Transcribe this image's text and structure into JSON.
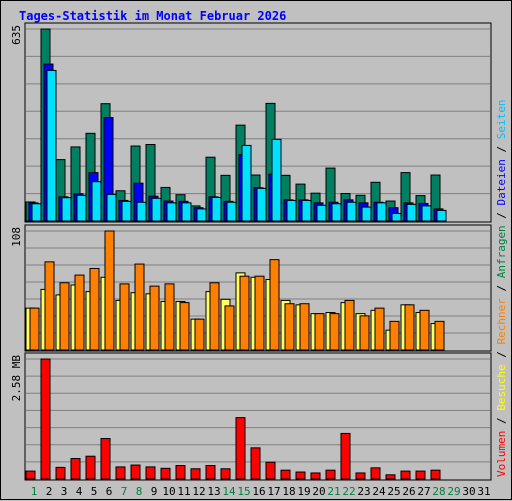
{
  "chart_data": {
    "type": "bar",
    "title": "Tages-Statistik im Monat Februar 2026",
    "title_color": "#0000ff",
    "background": "#c0c0c0",
    "plot_background": "#c0c0c0",
    "grid": true,
    "categories": [
      "1",
      "2",
      "3",
      "4",
      "5",
      "6",
      "7",
      "8",
      "9",
      "10",
      "11",
      "12",
      "13",
      "14",
      "15",
      "16",
      "17",
      "18",
      "19",
      "20",
      "21",
      "22",
      "23",
      "24",
      "25",
      "26",
      "27",
      "28",
      "29",
      "30",
      "31"
    ],
    "category_colors": [
      "#008040",
      "#000000",
      "#000000",
      "#000000",
      "#000000",
      "#000000",
      "#008040",
      "#008040",
      "#000000",
      "#000000",
      "#000000",
      "#000000",
      "#000000",
      "#008040",
      "#008040",
      "#000000",
      "#000000",
      "#000000",
      "#000000",
      "#000000",
      "#008040",
      "#008040",
      "#000000",
      "#000000",
      "#000000",
      "#000000",
      "#000000",
      "#008040",
      "#008040",
      "#000000",
      "#000000"
    ],
    "panels": [
      {
        "name": "requests",
        "max_label": "635",
        "ymax": 635,
        "right_labels": [
          {
            "text": "Anfragen",
            "color": "#008040"
          },
          {
            "text": " / ",
            "color": "#000000"
          },
          {
            "text": "Dateien",
            "color": "#0000ff"
          },
          {
            "text": " / ",
            "color": "#000000"
          },
          {
            "text": "Seiten",
            "color": "#00c0ff"
          }
        ],
        "series": [
          {
            "name": "Anfragen",
            "color": "#008060",
            "values": [
              63,
              635,
              203,
              245,
              290,
              388,
              100,
              248,
              253,
              111,
              87,
              50,
              211,
              151,
              317,
              152,
              389,
              151,
              122,
              92,
              175,
              91,
              85,
              128,
              66,
              160,
              84,
              152,
              null,
              null,
              null
            ]
          },
          {
            "name": "Dateien",
            "color": "#0000ff",
            "values": [
              60,
              519,
              80,
              90,
              160,
              342,
              68,
              125,
              82,
              66,
              65,
              44,
              80,
              65,
              220,
              110,
              155,
              70,
              70,
              60,
              62,
              70,
              60,
              62,
              44,
              60,
              58,
              40,
              null,
              null,
              null
            ]
          },
          {
            "name": "Seiten",
            "color": "#00e0ff",
            "values": [
              57,
              498,
              77,
              85,
              130,
              88,
              65,
              62,
              75,
              60,
              60,
              40,
              78,
              62,
              250,
              108,
              270,
              68,
              68,
              52,
              57,
              62,
              46,
              60,
              25,
              55,
              50,
              35,
              null,
              null,
              null
            ]
          }
        ]
      },
      {
        "name": "visits",
        "max_label": "108",
        "ymax": 108,
        "right_labels": [
          {
            "text": "Besuche",
            "color": "#ffff00"
          },
          {
            "text": " / ",
            "color": "#000000"
          },
          {
            "text": "Rechner",
            "color": "#ff8000"
          }
        ],
        "series": [
          {
            "name": "Besuche",
            "color": "#ffff60",
            "values": [
              38,
              55,
              50,
              59,
              53,
              66,
              45,
              52,
              51,
              44,
              44,
              28,
              53,
              46,
              70,
              66,
              64,
              45,
              41,
              33,
              34,
              43,
              33,
              36,
              18,
              41,
              34,
              24,
              null,
              null,
              null
            ]
          },
          {
            "name": "Rechner",
            "color": "#ff8000",
            "values": [
              38,
              80,
              61,
              68,
              74,
              108,
              60,
              78,
              58,
              60,
              43,
              28,
              61,
              40,
              67,
              67,
              82,
              42,
              42,
              33,
              33,
              45,
              31,
              38,
              26,
              41,
              36,
              26,
              null,
              null,
              null
            ]
          }
        ]
      },
      {
        "name": "volume",
        "max_label": "2.58 MB",
        "ymax": 2.58,
        "right_labels": [
          {
            "text": "Volumen",
            "color": "#ff0000"
          }
        ],
        "series": [
          {
            "name": "Volumen",
            "color": "#ff0000",
            "values": [
              0.17,
              2.58,
              0.25,
              0.44,
              0.49,
              0.87,
              0.26,
              0.3,
              0.26,
              0.23,
              0.29,
              0.22,
              0.29,
              0.22,
              1.32,
              0.67,
              0.36,
              0.19,
              0.15,
              0.13,
              0.19,
              0.98,
              0.13,
              0.24,
              0.09,
              0.17,
              0.17,
              0.19,
              null,
              null,
              null
            ]
          }
        ]
      }
    ]
  }
}
